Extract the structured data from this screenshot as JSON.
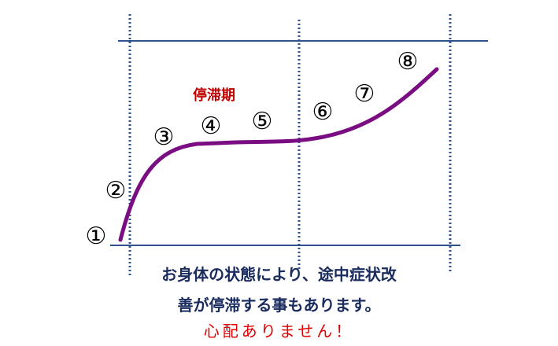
{
  "diagram": {
    "phase_label": "停滞期",
    "markers": [
      "①",
      "②",
      "③",
      "④",
      "⑤",
      "⑥",
      "⑦",
      "⑧"
    ],
    "colors": {
      "curve": "#7b0d82",
      "lines": "#2f528f",
      "label": "#c00000",
      "caption": "#1a2b5e",
      "note": "#e00000"
    }
  },
  "caption": {
    "line1": "お身体の状態により、途中症状改",
    "line2": "善が停滞する事もあります。",
    "note": "心配ありません！"
  }
}
